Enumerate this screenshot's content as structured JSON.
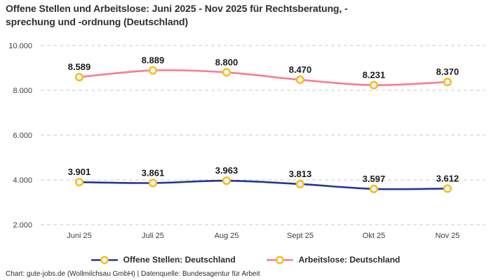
{
  "title": {
    "full": "Offene Stellen und Arbeitslose: Juni 2025 - Nov 2025 für Rechtsberatung, -sprechung und -ordnung (Deutschland)",
    "line1": "Offene Stellen und Arbeitslose: Juni 2025 - Nov 2025 für Rechtsberatung, -",
    "line2": "sprechung und -ordnung (Deutschland)"
  },
  "footer": {
    "text": "Chart: gute-jobs.de (Wollmilchsau GmbH) | Datenquelle: Bundesagentur für Arbeit"
  },
  "colors": {
    "grid": "#c9c9c9",
    "axis_text": "#3f3f3f",
    "data_label": "#1a1a1a",
    "marker_ring": "#f9bb21",
    "marker_fill": "#ffffff"
  },
  "chart_data": {
    "type": "line",
    "title": "Offene Stellen und Arbeitslose: Juni 2025 - Nov 2025 für Rechtsberatung, -sprechung und -ordnung (Deutschland)",
    "categories": [
      "Juni 25",
      "Juli 25",
      "Aug 25",
      "Sept 25",
      "Okt 25",
      "Nov 25"
    ],
    "series": [
      {
        "name": "Offene Stellen: Deutschland",
        "color": "#213a8f",
        "values": [
          3901,
          3861,
          3963,
          3813,
          3597,
          3612
        ],
        "labels": [
          "3.901",
          "3.861",
          "3.963",
          "3.813",
          "3.597",
          "3.612"
        ]
      },
      {
        "name": "Arbeitslose: Deutschland",
        "color": "#f97c90",
        "values": [
          8589,
          8889,
          8800,
          8470,
          8231,
          8370
        ],
        "labels": [
          "8.589",
          "8.889",
          "8.800",
          "8.470",
          "8.231",
          "8.370"
        ]
      }
    ],
    "xlabel": "",
    "ylabel": "",
    "ylim": [
      2000,
      10000
    ],
    "yticks": [
      {
        "value": 2000,
        "label": "2.000"
      },
      {
        "value": 4000,
        "label": "4.000"
      },
      {
        "value": 6000,
        "label": "6.000"
      },
      {
        "value": 8000,
        "label": "8.000"
      },
      {
        "value": 10000,
        "label": "10.000"
      }
    ],
    "grid": "horizontal-dashed",
    "legend_position": "bottom"
  }
}
